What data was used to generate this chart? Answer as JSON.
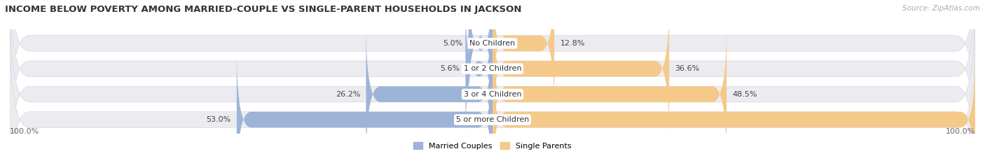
{
  "title": "INCOME BELOW POVERTY AMONG MARRIED-COUPLE VS SINGLE-PARENT HOUSEHOLDS IN JACKSON",
  "source": "Source: ZipAtlas.com",
  "categories": [
    "No Children",
    "1 or 2 Children",
    "3 or 4 Children",
    "5 or more Children"
  ],
  "married_values": [
    5.0,
    5.6,
    26.2,
    53.0
  ],
  "single_values": [
    12.8,
    36.6,
    48.5,
    100.0
  ],
  "married_color": "#9eb3d8",
  "single_color": "#f5c98a",
  "bar_bg_color": "#ebebf0",
  "row_bg_color": "#f5f5f8",
  "married_label": "Married Couples",
  "single_label": "Single Parents",
  "max_val": 100.0,
  "x_left_label": "100.0%",
  "x_right_label": "100.0%",
  "title_fontsize": 9.5,
  "source_fontsize": 7.5,
  "bar_label_fontsize": 8,
  "cat_label_fontsize": 8,
  "figsize": [
    14.06,
    2.33
  ],
  "dpi": 100
}
